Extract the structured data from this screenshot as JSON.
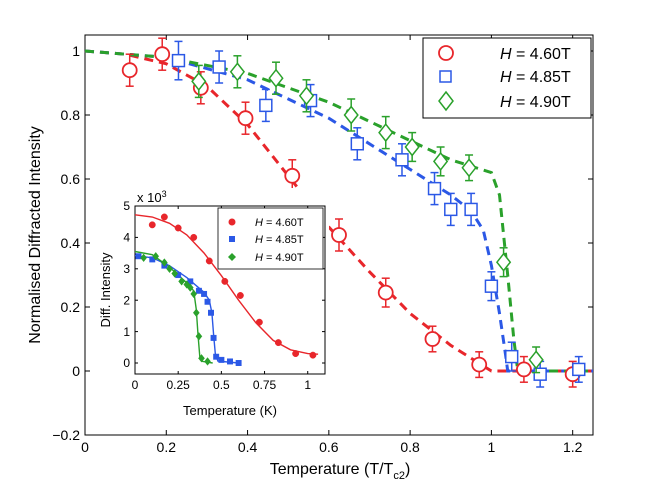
{
  "chart_data": [
    {
      "type": "scatter",
      "xlabel": "Temperature (T/T",
      "xlabel_sub": "c2",
      "xlabel_tail": ")",
      "ylabel": "Normalised Diffracted Intensity",
      "xlim": [
        0,
        1.25
      ],
      "ylim": [
        -0.2,
        1.05
      ],
      "xticks": [
        "0",
        "0.2",
        "0.4",
        "0.6",
        "0.8",
        "1",
        "1.2"
      ],
      "yticks": [
        "−0.2",
        "0",
        "0.2",
        "0.4",
        "0.6",
        "0.8",
        "1"
      ],
      "legend_position": "top-right",
      "series": [
        {
          "name": "H = 4.60T",
          "label_var": "H",
          "label_val": " = 4.60T",
          "color": "#e8262b",
          "marker": "circle",
          "points": [
            [
              0.11,
              0.94,
              0.05
            ],
            [
              0.19,
              0.99,
              0.05
            ],
            [
              0.285,
              0.885,
              0.05
            ],
            [
              0.395,
              0.79,
              0.05
            ],
            [
              0.51,
              0.61,
              0.05
            ],
            [
              0.625,
              0.425,
              0.05
            ],
            [
              0.74,
              0.245,
              0.045
            ],
            [
              0.855,
              0.1,
              0.04
            ],
            [
              0.97,
              0.02,
              0.04
            ],
            [
              1.08,
              0.005,
              0.04
            ],
            [
              1.2,
              -0.01,
              0.04
            ]
          ],
          "fit": [
            [
              0,
              1.0
            ],
            [
              0.1,
              0.99
            ],
            [
              0.2,
              0.96
            ],
            [
              0.3,
              0.89
            ],
            [
              0.4,
              0.77
            ],
            [
              0.5,
              0.61
            ],
            [
              0.6,
              0.45
            ],
            [
              0.7,
              0.31
            ],
            [
              0.8,
              0.18
            ],
            [
              0.9,
              0.08
            ],
            [
              0.95,
              0.04
            ],
            [
              1.0,
              0.0
            ],
            [
              1.25,
              0.0
            ]
          ]
        },
        {
          "name": "H = 4.85T",
          "label_var": "H",
          "label_val": " = 4.85T",
          "color": "#2b58e6",
          "marker": "square",
          "points": [
            [
              0.23,
              0.97,
              0.06
            ],
            [
              0.33,
              0.95,
              0.05
            ],
            [
              0.445,
              0.83,
              0.05
            ],
            [
              0.555,
              0.845,
              0.05
            ],
            [
              0.67,
              0.71,
              0.05
            ],
            [
              0.78,
              0.66,
              0.05
            ],
            [
              0.86,
              0.57,
              0.05
            ],
            [
              0.9,
              0.505,
              0.05
            ],
            [
              0.95,
              0.505,
              0.05
            ],
            [
              1.0,
              0.265,
              0.045
            ],
            [
              1.05,
              0.045,
              0.045
            ],
            [
              1.12,
              -0.01,
              0.04
            ],
            [
              1.215,
              0.005,
              0.04
            ]
          ],
          "fit": [
            [
              0,
              1.0
            ],
            [
              0.2,
              0.98
            ],
            [
              0.4,
              0.91
            ],
            [
              0.6,
              0.79
            ],
            [
              0.8,
              0.63
            ],
            [
              0.9,
              0.55
            ],
            [
              0.95,
              0.5
            ],
            [
              0.98,
              0.44
            ],
            [
              1.0,
              0.33
            ],
            [
              1.02,
              0.18
            ],
            [
              1.035,
              0.05
            ],
            [
              1.04,
              0.0
            ],
            [
              1.25,
              0.0
            ]
          ]
        },
        {
          "name": "H = 4.90T",
          "label_var": "H",
          "label_val": " = 4.90T",
          "color": "#2aa12b",
          "marker": "diamond",
          "points": [
            [
              0.28,
              0.905,
              0.05
            ],
            [
              0.375,
              0.935,
              0.05
            ],
            [
              0.47,
              0.915,
              0.05
            ],
            [
              0.545,
              0.86,
              0.05
            ],
            [
              0.655,
              0.8,
              0.05
            ],
            [
              0.74,
              0.745,
              0.05
            ],
            [
              0.805,
              0.7,
              0.045
            ],
            [
              0.875,
              0.655,
              0.045
            ],
            [
              0.945,
              0.635,
              0.04
            ],
            [
              1.03,
              0.34,
              0.045
            ],
            [
              1.11,
              0.035,
              0.04
            ]
          ],
          "fit": [
            [
              0,
              1.0
            ],
            [
              0.2,
              0.98
            ],
            [
              0.4,
              0.93
            ],
            [
              0.6,
              0.84
            ],
            [
              0.8,
              0.72
            ],
            [
              0.9,
              0.66
            ],
            [
              1.0,
              0.62
            ],
            [
              1.02,
              0.55
            ],
            [
              1.04,
              0.3
            ],
            [
              1.055,
              0.1
            ],
            [
              1.065,
              0.0
            ],
            [
              1.25,
              0.0
            ]
          ]
        }
      ]
    },
    {
      "type": "scatter",
      "inset": true,
      "xlabel": "Temperature (K)",
      "ylabel": "Diff. Intensity",
      "multiplier": "x 10",
      "multiplier_exp": "3",
      "xlim": [
        0,
        1.1
      ],
      "ylim": [
        -0.35,
        5.0
      ],
      "xticks": [
        "0",
        "0.25",
        "0.5",
        "0.75",
        "1"
      ],
      "yticks": [
        "0",
        "1",
        "2",
        "3",
        "4",
        "5"
      ],
      "legend_position": "top-right",
      "series": [
        {
          "name": "H = 4.60T",
          "label_var": "H",
          "label_val": " = 4.60T",
          "color": "#e8262b",
          "marker": "circle",
          "points": [
            [
              0.1,
              4.4
            ],
            [
              0.17,
              4.65
            ],
            [
              0.25,
              4.3
            ],
            [
              0.34,
              4.0
            ],
            [
              0.43,
              3.25
            ],
            [
              0.52,
              2.6
            ],
            [
              0.61,
              2.15
            ],
            [
              0.72,
              1.3
            ],
            [
              0.83,
              0.65
            ],
            [
              0.93,
              0.3
            ],
            [
              1.03,
              0.25
            ]
          ],
          "fit": [
            [
              0,
              4.72
            ],
            [
              0.1,
              4.65
            ],
            [
              0.2,
              4.45
            ],
            [
              0.3,
              4.08
            ],
            [
              0.4,
              3.5
            ],
            [
              0.5,
              2.78
            ],
            [
              0.6,
              2.0
            ],
            [
              0.7,
              1.28
            ],
            [
              0.8,
              0.72
            ],
            [
              0.9,
              0.42
            ],
            [
              1.0,
              0.3
            ],
            [
              1.06,
              0.28
            ]
          ]
        },
        {
          "name": "H = 4.85T",
          "label_var": "H",
          "label_val": " = 4.85T",
          "color": "#2b58e6",
          "marker": "square",
          "points": [
            [
              0.02,
              3.4
            ],
            [
              0.1,
              3.3
            ],
            [
              0.17,
              3.1
            ],
            [
              0.25,
              2.8
            ],
            [
              0.32,
              2.6
            ],
            [
              0.37,
              2.3
            ],
            [
              0.4,
              2.2
            ],
            [
              0.42,
              1.95
            ],
            [
              0.44,
              1.6
            ],
            [
              0.455,
              0.8
            ],
            [
              0.47,
              0.2
            ],
            [
              0.5,
              0.1
            ],
            [
              0.55,
              0.05
            ],
            [
              0.6,
              0.0
            ]
          ],
          "fit": [
            [
              0,
              3.42
            ],
            [
              0.1,
              3.35
            ],
            [
              0.2,
              3.1
            ],
            [
              0.3,
              2.72
            ],
            [
              0.4,
              2.25
            ],
            [
              0.43,
              2.0
            ],
            [
              0.445,
              1.6
            ],
            [
              0.455,
              0.9
            ],
            [
              0.465,
              0.3
            ],
            [
              0.48,
              0.06
            ],
            [
              0.6,
              0.0
            ]
          ]
        },
        {
          "name": "H = 4.90T",
          "label_var": "H",
          "label_val": " = 4.90T",
          "color": "#2aa12b",
          "marker": "diamond",
          "points": [
            [
              0.05,
              3.35
            ],
            [
              0.12,
              3.4
            ],
            [
              0.17,
              3.2
            ],
            [
              0.2,
              3.0
            ],
            [
              0.23,
              2.85
            ],
            [
              0.27,
              2.6
            ],
            [
              0.3,
              2.5
            ],
            [
              0.32,
              2.4
            ],
            [
              0.34,
              2.2
            ],
            [
              0.355,
              1.6
            ],
            [
              0.37,
              0.85
            ],
            [
              0.385,
              0.15
            ],
            [
              0.42,
              0.05
            ]
          ],
          "fit": [
            [
              0,
              3.55
            ],
            [
              0.1,
              3.45
            ],
            [
              0.2,
              3.05
            ],
            [
              0.3,
              2.55
            ],
            [
              0.34,
              2.3
            ],
            [
              0.355,
              1.7
            ],
            [
              0.365,
              0.9
            ],
            [
              0.375,
              0.2
            ],
            [
              0.39,
              0.05
            ],
            [
              0.45,
              0.0
            ]
          ]
        }
      ]
    }
  ]
}
